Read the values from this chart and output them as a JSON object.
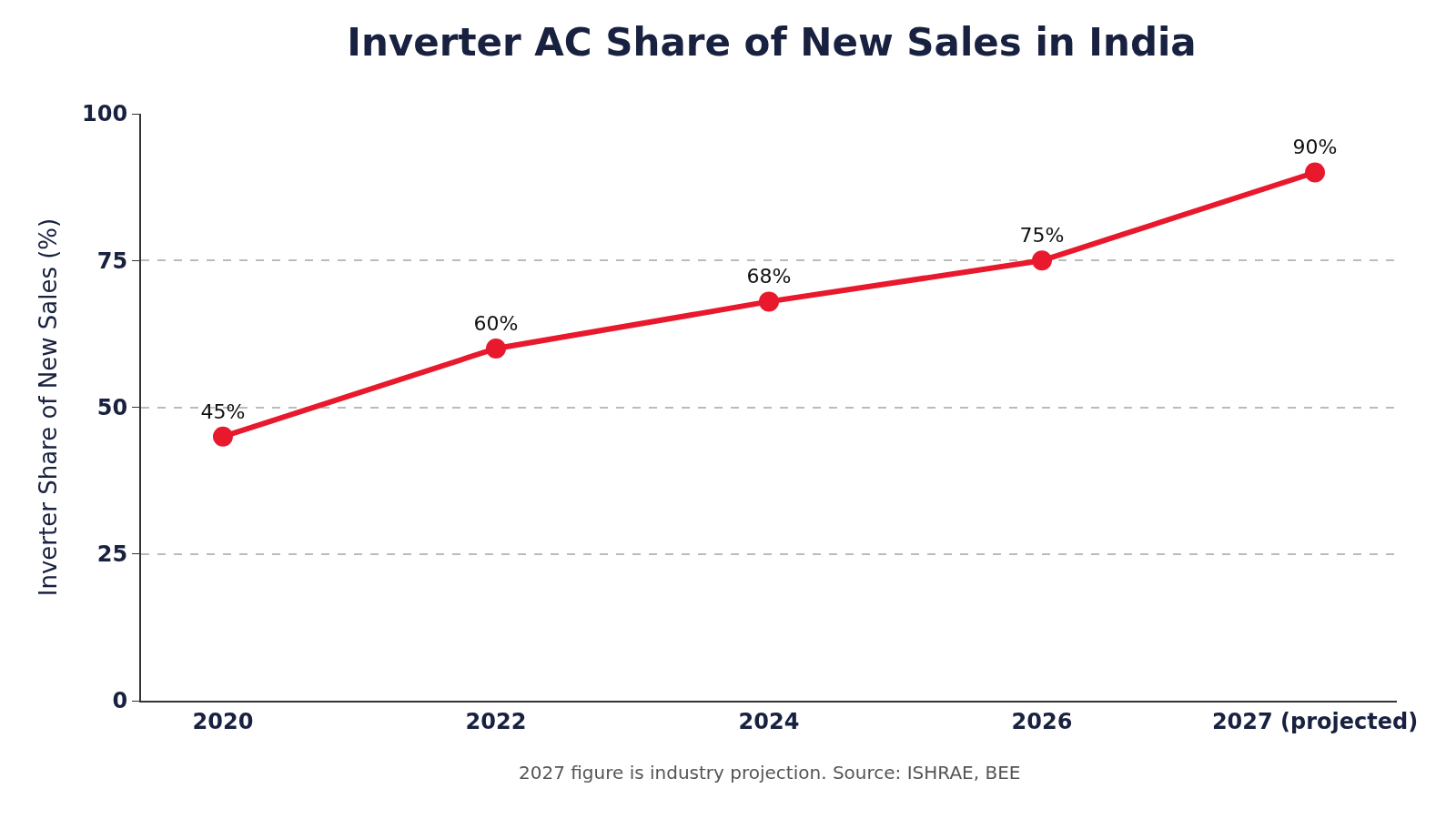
{
  "chart_data": {
    "type": "line",
    "title": "Inverter AC Share of New Sales in India",
    "ylabel": "Inverter Share of New Sales (%)",
    "categories": [
      "2020",
      "2022",
      "2024",
      "2026",
      "2027 (projected)"
    ],
    "series": [
      {
        "color": "#e8192c",
        "values": [
          45,
          60,
          68,
          75,
          90
        ],
        "value_labels": [
          "45%",
          "60%",
          "68%",
          "75%",
          "90%"
        ]
      }
    ],
    "ylim": [
      0,
      100
    ],
    "yticks": [
      0,
      25,
      50,
      75,
      100
    ],
    "grid": "y",
    "marker": "circle",
    "line_style": "solid",
    "annotations": [
      "2027 figure is industry projection. Source: ISHRAE, BEE"
    ]
  }
}
